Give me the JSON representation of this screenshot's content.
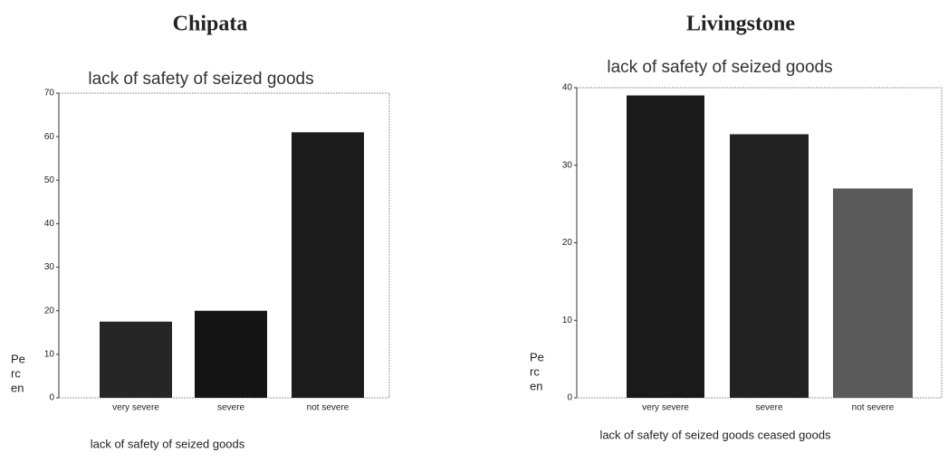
{
  "chart_data": [
    {
      "type": "bar",
      "heading": "Chipata",
      "title": "lack of safety of seized  goods",
      "categories": [
        "very severe",
        "severe",
        "not severe"
      ],
      "values": [
        17.5,
        20,
        61
      ],
      "colors": [
        "#262626",
        "#141414",
        "#1c1c1c"
      ],
      "ylim": [
        0,
        70
      ],
      "yticks": [
        0,
        10,
        20,
        30,
        40,
        50,
        60,
        70
      ],
      "ylabel": [
        "Pe",
        "rc",
        "en"
      ],
      "xlabel": "lack of safety of seized goods"
    },
    {
      "type": "bar",
      "heading": "Livingstone",
      "title": "lack of safety of seized  goods",
      "categories": [
        "very severe",
        "severe",
        "not severe"
      ],
      "values": [
        39,
        34,
        27
      ],
      "colors": [
        "#1a1a1a",
        "#222222",
        "#5a5a5a"
      ],
      "ylim": [
        0,
        40
      ],
      "yticks": [
        0,
        10,
        20,
        30,
        40
      ],
      "ylabel": [
        "Pe",
        "rc",
        "en"
      ],
      "xlabel": "lack of safety of seized goods ceased goods"
    }
  ]
}
